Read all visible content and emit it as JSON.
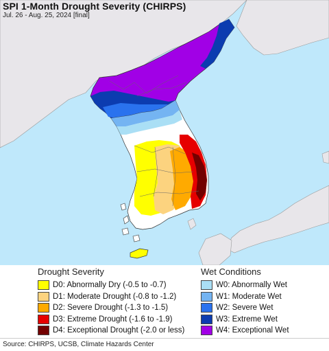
{
  "header": {
    "title": "SPI 1-Month Drought Severity (CHIRPS)",
    "subtitle": "Jul. 26 - Aug. 25, 2024 [final]"
  },
  "map": {
    "sea_color": "#bfe8fb",
    "land_outside_color": "#e8e6ea",
    "region": "Korean Peninsula"
  },
  "legend": {
    "drought_heading": "Drought Severity",
    "drought": [
      {
        "label": "D0: Abnormally Dry (-0.5 to -0.7)",
        "color": "#ffff00"
      },
      {
        "label": "D1: Moderate Drought (-0.8 to -1.2)",
        "color": "#fcd37f"
      },
      {
        "label": "D2: Severe Drought (-1.3 to -1.5)",
        "color": "#ffaa00"
      },
      {
        "label": "D3: Extreme Drought (-1.6 to -1.9)",
        "color": "#e60000"
      },
      {
        "label": "D4: Exceptional Drought (-2.0 or less)",
        "color": "#730000"
      }
    ],
    "wet_heading": "Wet Conditions",
    "wet": [
      {
        "label": "W0: Abnormally Wet",
        "color": "#aadff5"
      },
      {
        "label": "W1: Moderate Wet",
        "color": "#74b4f2"
      },
      {
        "label": "W2: Severe Wet",
        "color": "#2a72ee"
      },
      {
        "label": "W3: Extreme Wet",
        "color": "#0c3cb0"
      },
      {
        "label": "W4: Exceptional Wet",
        "color": "#a100e6"
      }
    ]
  },
  "footer": {
    "source": "Source: CHIRPS, UCSB, Climate Hazards Center"
  }
}
